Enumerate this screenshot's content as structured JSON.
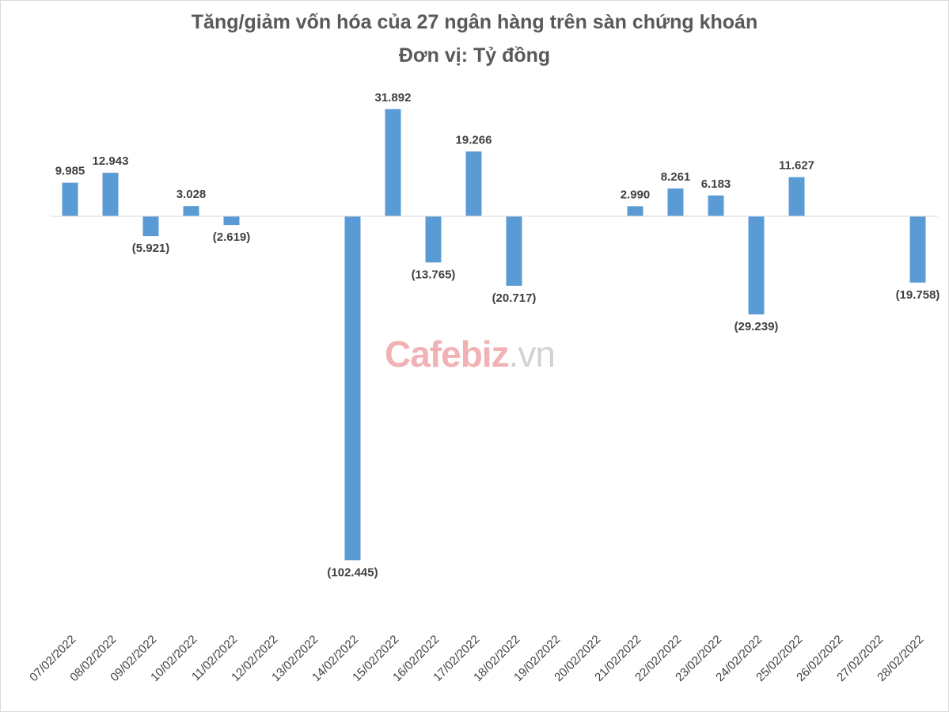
{
  "title": "Tăng/giảm vốn hóa của 27 ngân hàng trên sàn chứng khoán",
  "subtitle": "Đơn vị: Tỷ đồng",
  "watermark": {
    "brand": "Cafebiz",
    "suffix": ".vn"
  },
  "colors": {
    "bar": "#5b9bd5",
    "axis": "#d9d9d9"
  },
  "chart_data": {
    "type": "bar",
    "title": "Tăng/giảm vốn hóa của 27 ngân hàng trên sàn chứng khoán",
    "subtitle": "Đơn vị: Tỷ đồng",
    "xlabel": "",
    "ylabel": "",
    "grid": false,
    "categories": [
      "07/02/2022",
      "08/02/2022",
      "09/02/2022",
      "10/02/2022",
      "11/02/2022",
      "12/02/2022",
      "13/02/2022",
      "14/02/2022",
      "15/02/2022",
      "16/02/2022",
      "17/02/2022",
      "18/02/2022",
      "19/02/2022",
      "20/02/2022",
      "21/02/2022",
      "22/02/2022",
      "23/02/2022",
      "24/02/2022",
      "25/02/2022",
      "26/02/2022",
      "27/02/2022",
      "28/02/2022"
    ],
    "values": [
      9985,
      12943,
      -5921,
      3028,
      -2619,
      null,
      null,
      -102445,
      31892,
      -13765,
      19266,
      -20717,
      null,
      null,
      2990,
      8261,
      6183,
      -29239,
      11627,
      null,
      null,
      -19758
    ],
    "data_labels": [
      "9.985",
      "12.943",
      "(5.921)",
      "3.028",
      "(2.619)",
      "",
      "",
      "(102.445)",
      "31.892",
      "(13.765)",
      "19.266",
      "(20.717)",
      "",
      "",
      "2.990",
      "8.261",
      "6.183",
      "(29.239)",
      "11.627",
      "",
      "",
      "(19.758)"
    ]
  }
}
